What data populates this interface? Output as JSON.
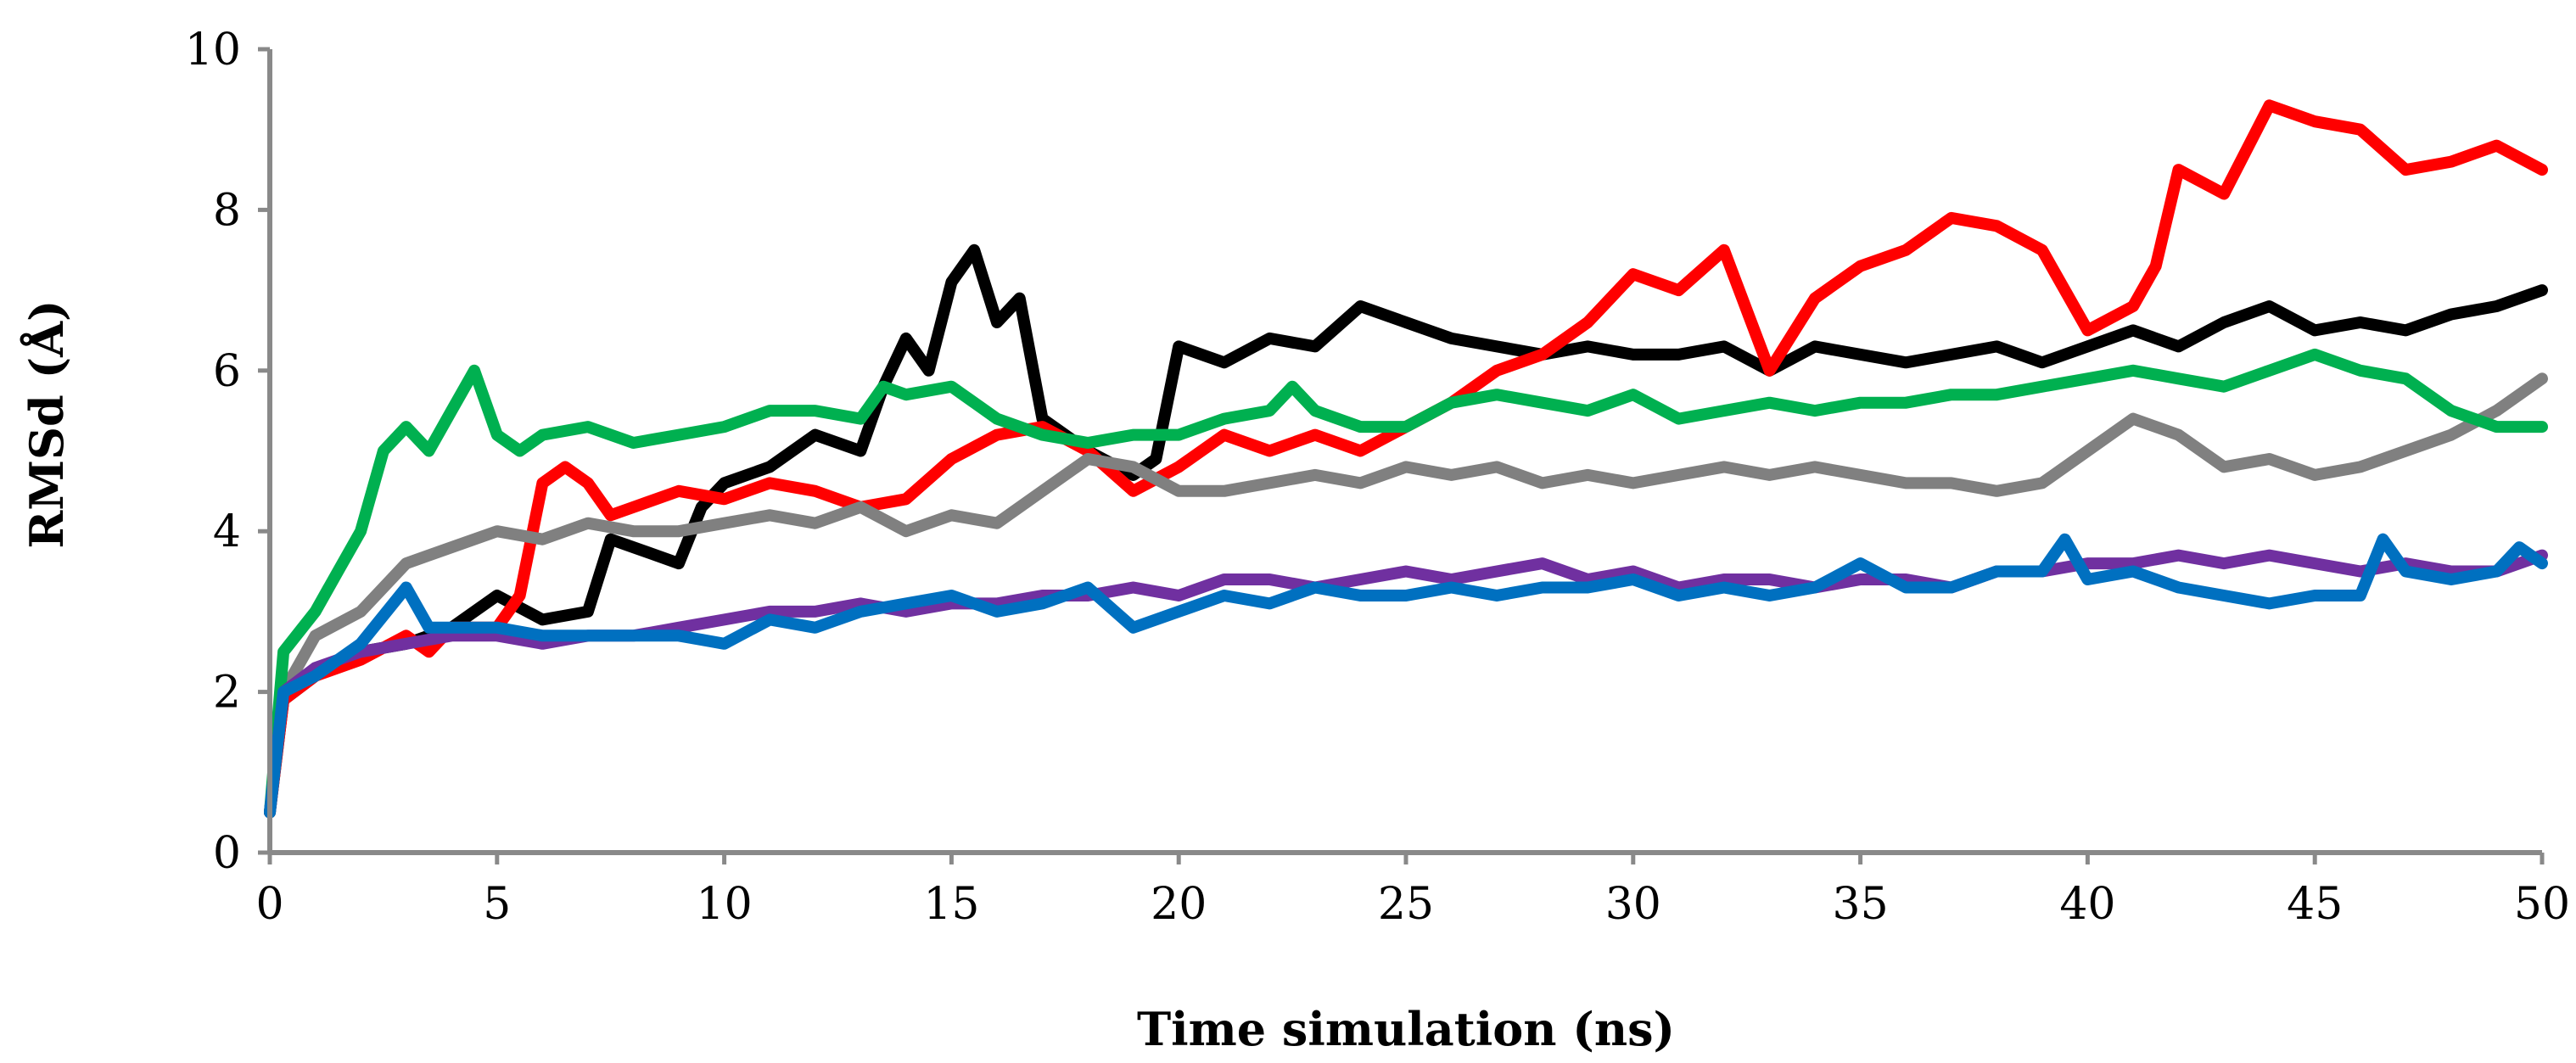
{
  "chart_data": {
    "type": "line",
    "title": "",
    "xlabel": "Time simulation  (ns)",
    "ylabel": "RMSd (Å)",
    "xlim": [
      0,
      50
    ],
    "ylim": [
      0,
      10
    ],
    "x_ticks": [
      0,
      5,
      10,
      15,
      20,
      25,
      30,
      35,
      40,
      45,
      50
    ],
    "y_ticks": [
      0,
      2,
      4,
      6,
      8,
      10
    ],
    "grid": false,
    "legend": "none",
    "series": [
      {
        "name": "black",
        "color": "#000000",
        "x": [
          0,
          0.3,
          1,
          2,
          3,
          4,
          5,
          6,
          7,
          7.5,
          8,
          9,
          9.5,
          10,
          11,
          12,
          13,
          13.5,
          14,
          14.5,
          15,
          15.5,
          16,
          16.5,
          17,
          18,
          19,
          19.5,
          20,
          21,
          22,
          23,
          24,
          25,
          26,
          27,
          28,
          29,
          30,
          31,
          32,
          33,
          34,
          35,
          36,
          37,
          38,
          39,
          40,
          41,
          42,
          43,
          44,
          45,
          46,
          47,
          48,
          49,
          50
        ],
        "y": [
          0.5,
          1.9,
          2.2,
          2.5,
          2.6,
          2.8,
          3.2,
          2.9,
          3.0,
          3.9,
          3.8,
          3.6,
          4.3,
          4.6,
          4.8,
          5.2,
          5.0,
          5.8,
          6.4,
          6.0,
          7.1,
          7.5,
          6.6,
          6.9,
          5.4,
          5.0,
          4.7,
          4.9,
          6.3,
          6.1,
          6.4,
          6.3,
          6.8,
          6.6,
          6.4,
          6.3,
          6.2,
          6.3,
          6.2,
          6.2,
          6.3,
          6.0,
          6.3,
          6.2,
          6.1,
          6.2,
          6.3,
          6.1,
          6.3,
          6.5,
          6.3,
          6.6,
          6.8,
          6.5,
          6.6,
          6.5,
          6.7,
          6.8,
          7.0
        ]
      },
      {
        "name": "red",
        "color": "#ff0000",
        "x": [
          0,
          0.3,
          1,
          2,
          3,
          3.5,
          4,
          5,
          5.5,
          6,
          6.5,
          7,
          7.5,
          8,
          9,
          10,
          11,
          12,
          13,
          14,
          15,
          16,
          17,
          18,
          19,
          20,
          21,
          22,
          23,
          24,
          25,
          26,
          27,
          28,
          29,
          30,
          31,
          32,
          33,
          34,
          35,
          36,
          37,
          38,
          39,
          40,
          41,
          41.5,
          42,
          43,
          44,
          45,
          46,
          47,
          48,
          49,
          50
        ],
        "y": [
          0.5,
          1.9,
          2.2,
          2.4,
          2.7,
          2.5,
          2.8,
          2.8,
          3.2,
          4.6,
          4.8,
          4.6,
          4.2,
          4.3,
          4.5,
          4.4,
          4.6,
          4.5,
          4.3,
          4.4,
          4.9,
          5.2,
          5.3,
          5.0,
          4.5,
          4.8,
          5.2,
          5.0,
          5.2,
          5.0,
          5.3,
          5.6,
          6.0,
          6.2,
          6.6,
          7.2,
          7.0,
          7.5,
          6.0,
          6.9,
          7.3,
          7.5,
          7.9,
          7.8,
          7.5,
          6.5,
          6.8,
          7.3,
          8.5,
          8.2,
          9.3,
          9.1,
          9.0,
          8.5,
          8.6,
          8.8,
          8.5
        ]
      },
      {
        "name": "gray",
        "color": "#808080",
        "x": [
          0,
          0.3,
          1,
          2,
          3,
          4,
          5,
          6,
          7,
          8,
          9,
          10,
          11,
          12,
          13,
          14,
          15,
          16,
          17,
          18,
          19,
          20,
          21,
          22,
          23,
          24,
          25,
          26,
          27,
          28,
          29,
          30,
          31,
          32,
          33,
          34,
          35,
          36,
          37,
          38,
          39,
          40,
          41,
          42,
          43,
          44,
          45,
          46,
          47,
          48,
          49,
          50
        ],
        "y": [
          0.5,
          2.0,
          2.7,
          3.0,
          3.6,
          3.8,
          4.0,
          3.9,
          4.1,
          4.0,
          4.0,
          4.1,
          4.2,
          4.1,
          4.3,
          4.0,
          4.2,
          4.1,
          4.5,
          4.9,
          4.8,
          4.5,
          4.5,
          4.6,
          4.7,
          4.6,
          4.8,
          4.7,
          4.8,
          4.6,
          4.7,
          4.6,
          4.7,
          4.8,
          4.7,
          4.8,
          4.7,
          4.6,
          4.6,
          4.5,
          4.6,
          5.0,
          5.4,
          5.2,
          4.8,
          4.9,
          4.7,
          4.8,
          5.0,
          5.2,
          5.5,
          5.9
        ]
      },
      {
        "name": "green",
        "color": "#00b050",
        "x": [
          0,
          0.3,
          1,
          1.5,
          2,
          2.5,
          3,
          3.5,
          4,
          4.5,
          5,
          5.5,
          6,
          7,
          8,
          9,
          10,
          11,
          12,
          13,
          13.5,
          14,
          15,
          16,
          17,
          18,
          19,
          20,
          21,
          22,
          22.5,
          23,
          24,
          25,
          26,
          27,
          28,
          29,
          30,
          31,
          32,
          33,
          34,
          35,
          36,
          37,
          38,
          39,
          40,
          41,
          42,
          43,
          44,
          45,
          46,
          47,
          48,
          49,
          50
        ],
        "y": [
          0.5,
          2.5,
          3.0,
          3.5,
          4.0,
          5.0,
          5.3,
          5.0,
          5.5,
          6.0,
          5.2,
          5.0,
          5.2,
          5.3,
          5.1,
          5.2,
          5.3,
          5.5,
          5.5,
          5.4,
          5.8,
          5.7,
          5.8,
          5.4,
          5.2,
          5.1,
          5.2,
          5.2,
          5.4,
          5.5,
          5.8,
          5.5,
          5.3,
          5.3,
          5.6,
          5.7,
          5.6,
          5.5,
          5.7,
          5.4,
          5.5,
          5.6,
          5.5,
          5.6,
          5.6,
          5.7,
          5.7,
          5.8,
          5.9,
          6.0,
          5.9,
          5.8,
          6.0,
          6.2,
          6.0,
          5.9,
          5.5,
          5.3,
          5.3
        ]
      },
      {
        "name": "purple",
        "color": "#7030a0",
        "x": [
          0,
          0.3,
          1,
          2,
          3,
          4,
          5,
          6,
          7,
          8,
          9,
          10,
          11,
          12,
          13,
          14,
          15,
          16,
          17,
          18,
          19,
          20,
          21,
          22,
          23,
          24,
          25,
          26,
          27,
          28,
          29,
          30,
          31,
          32,
          33,
          34,
          35,
          36,
          37,
          38,
          39,
          40,
          41,
          42,
          43,
          44,
          45,
          46,
          47,
          48,
          49,
          50
        ],
        "y": [
          0.5,
          2.0,
          2.3,
          2.5,
          2.6,
          2.7,
          2.7,
          2.6,
          2.7,
          2.7,
          2.8,
          2.9,
          3.0,
          3.0,
          3.1,
          3.0,
          3.1,
          3.1,
          3.2,
          3.2,
          3.3,
          3.2,
          3.4,
          3.4,
          3.3,
          3.4,
          3.5,
          3.4,
          3.5,
          3.6,
          3.4,
          3.5,
          3.3,
          3.4,
          3.4,
          3.3,
          3.4,
          3.4,
          3.3,
          3.5,
          3.5,
          3.6,
          3.6,
          3.7,
          3.6,
          3.7,
          3.6,
          3.5,
          3.6,
          3.5,
          3.5,
          3.7
        ]
      },
      {
        "name": "blue",
        "color": "#0070c0",
        "x": [
          0,
          0.3,
          1,
          2,
          3,
          3.5,
          4,
          5,
          6,
          7,
          8,
          9,
          10,
          11,
          12,
          13,
          14,
          15,
          16,
          17,
          18,
          19,
          20,
          21,
          22,
          23,
          24,
          25,
          26,
          27,
          28,
          29,
          30,
          31,
          32,
          33,
          34,
          35,
          36,
          37,
          38,
          39,
          39.5,
          40,
          41,
          42,
          43,
          44,
          45,
          46,
          46.5,
          47,
          48,
          49,
          49.5,
          50
        ],
        "y": [
          0.5,
          2.0,
          2.2,
          2.6,
          3.3,
          2.8,
          2.8,
          2.8,
          2.7,
          2.7,
          2.7,
          2.7,
          2.6,
          2.9,
          2.8,
          3.0,
          3.1,
          3.2,
          3.0,
          3.1,
          3.3,
          2.8,
          3.0,
          3.2,
          3.1,
          3.3,
          3.2,
          3.2,
          3.3,
          3.2,
          3.3,
          3.3,
          3.4,
          3.2,
          3.3,
          3.2,
          3.3,
          3.6,
          3.3,
          3.3,
          3.5,
          3.5,
          3.9,
          3.4,
          3.5,
          3.3,
          3.2,
          3.1,
          3.2,
          3.2,
          3.9,
          3.5,
          3.4,
          3.5,
          3.8,
          3.6
        ]
      }
    ]
  }
}
